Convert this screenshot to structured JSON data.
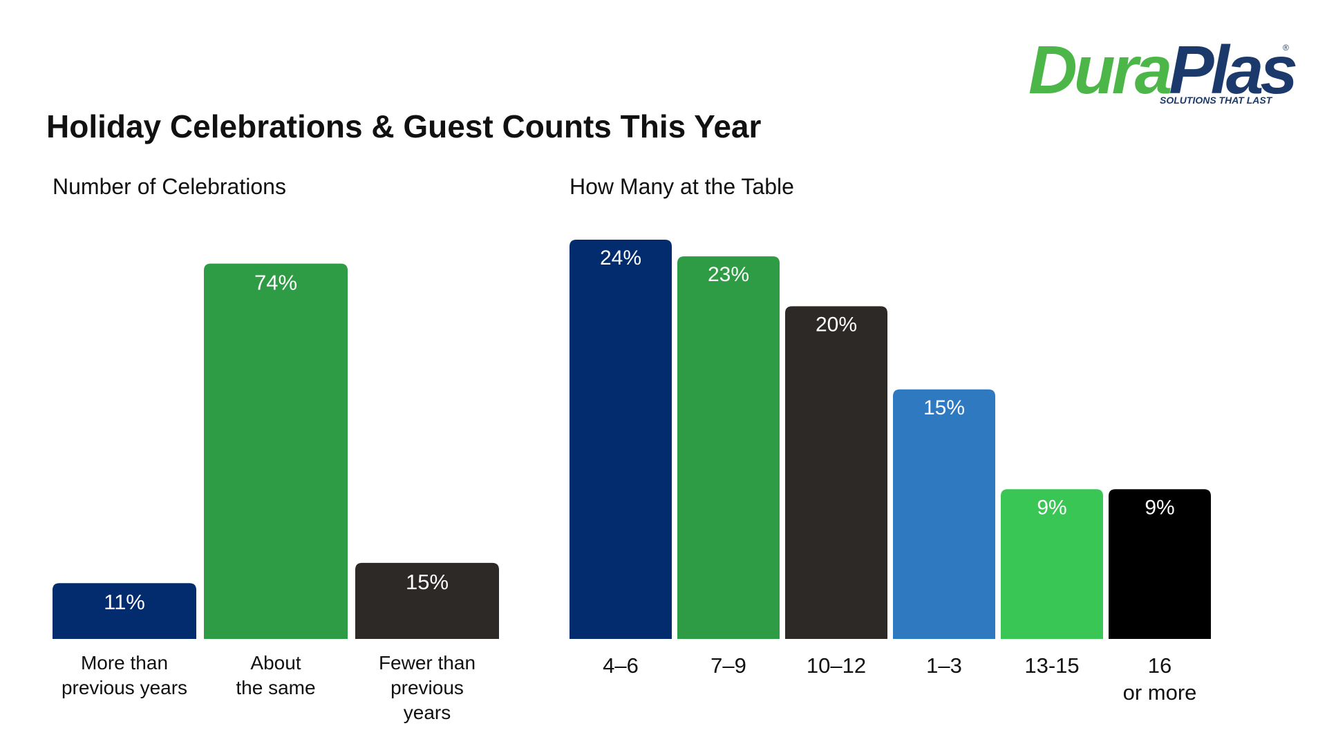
{
  "title": "Holiday Celebrations & Guest Counts This Year",
  "logo": {
    "word_part1": "Dura",
    "word_part2": "Plas",
    "registered": "®",
    "tagline": "SOLUTIONS THAT LAST",
    "colors": {
      "primary": "#4cb748",
      "secondary": "#1b3a6b"
    }
  },
  "chart_data": [
    {
      "type": "bar",
      "title": "Number of Celebrations",
      "categories": [
        [
          "More than",
          "previous years"
        ],
        [
          "About",
          "the same"
        ],
        [
          "Fewer than",
          "previous",
          "years"
        ]
      ],
      "values": [
        11,
        74,
        15
      ],
      "value_labels": [
        "11%",
        "74%",
        "15%"
      ],
      "colors": [
        "#022c6e",
        "#2e9c44",
        "#2d2927"
      ],
      "unit": "%",
      "xlabel": "",
      "ylabel": "",
      "ylim": [
        0,
        76
      ],
      "grid": false,
      "legend": "none"
    },
    {
      "type": "bar",
      "title": "How Many at the Table",
      "categories": [
        [
          "4–6"
        ],
        [
          "7–9"
        ],
        [
          "10–12"
        ],
        [
          "1–3"
        ],
        [
          "13-15"
        ],
        [
          "16",
          "or more"
        ]
      ],
      "values": [
        24,
        23,
        20,
        15,
        9,
        9
      ],
      "value_labels": [
        "24%",
        "23%",
        "20%",
        "15%",
        "9%",
        "9%"
      ],
      "colors": [
        "#022c6e",
        "#2e9c44",
        "#2d2927",
        "#2f79c0",
        "#3ac654",
        "#000000"
      ],
      "unit": "%",
      "xlabel": "",
      "ylabel": "",
      "ylim": [
        0,
        24
      ],
      "grid": false,
      "legend": "none"
    }
  ]
}
